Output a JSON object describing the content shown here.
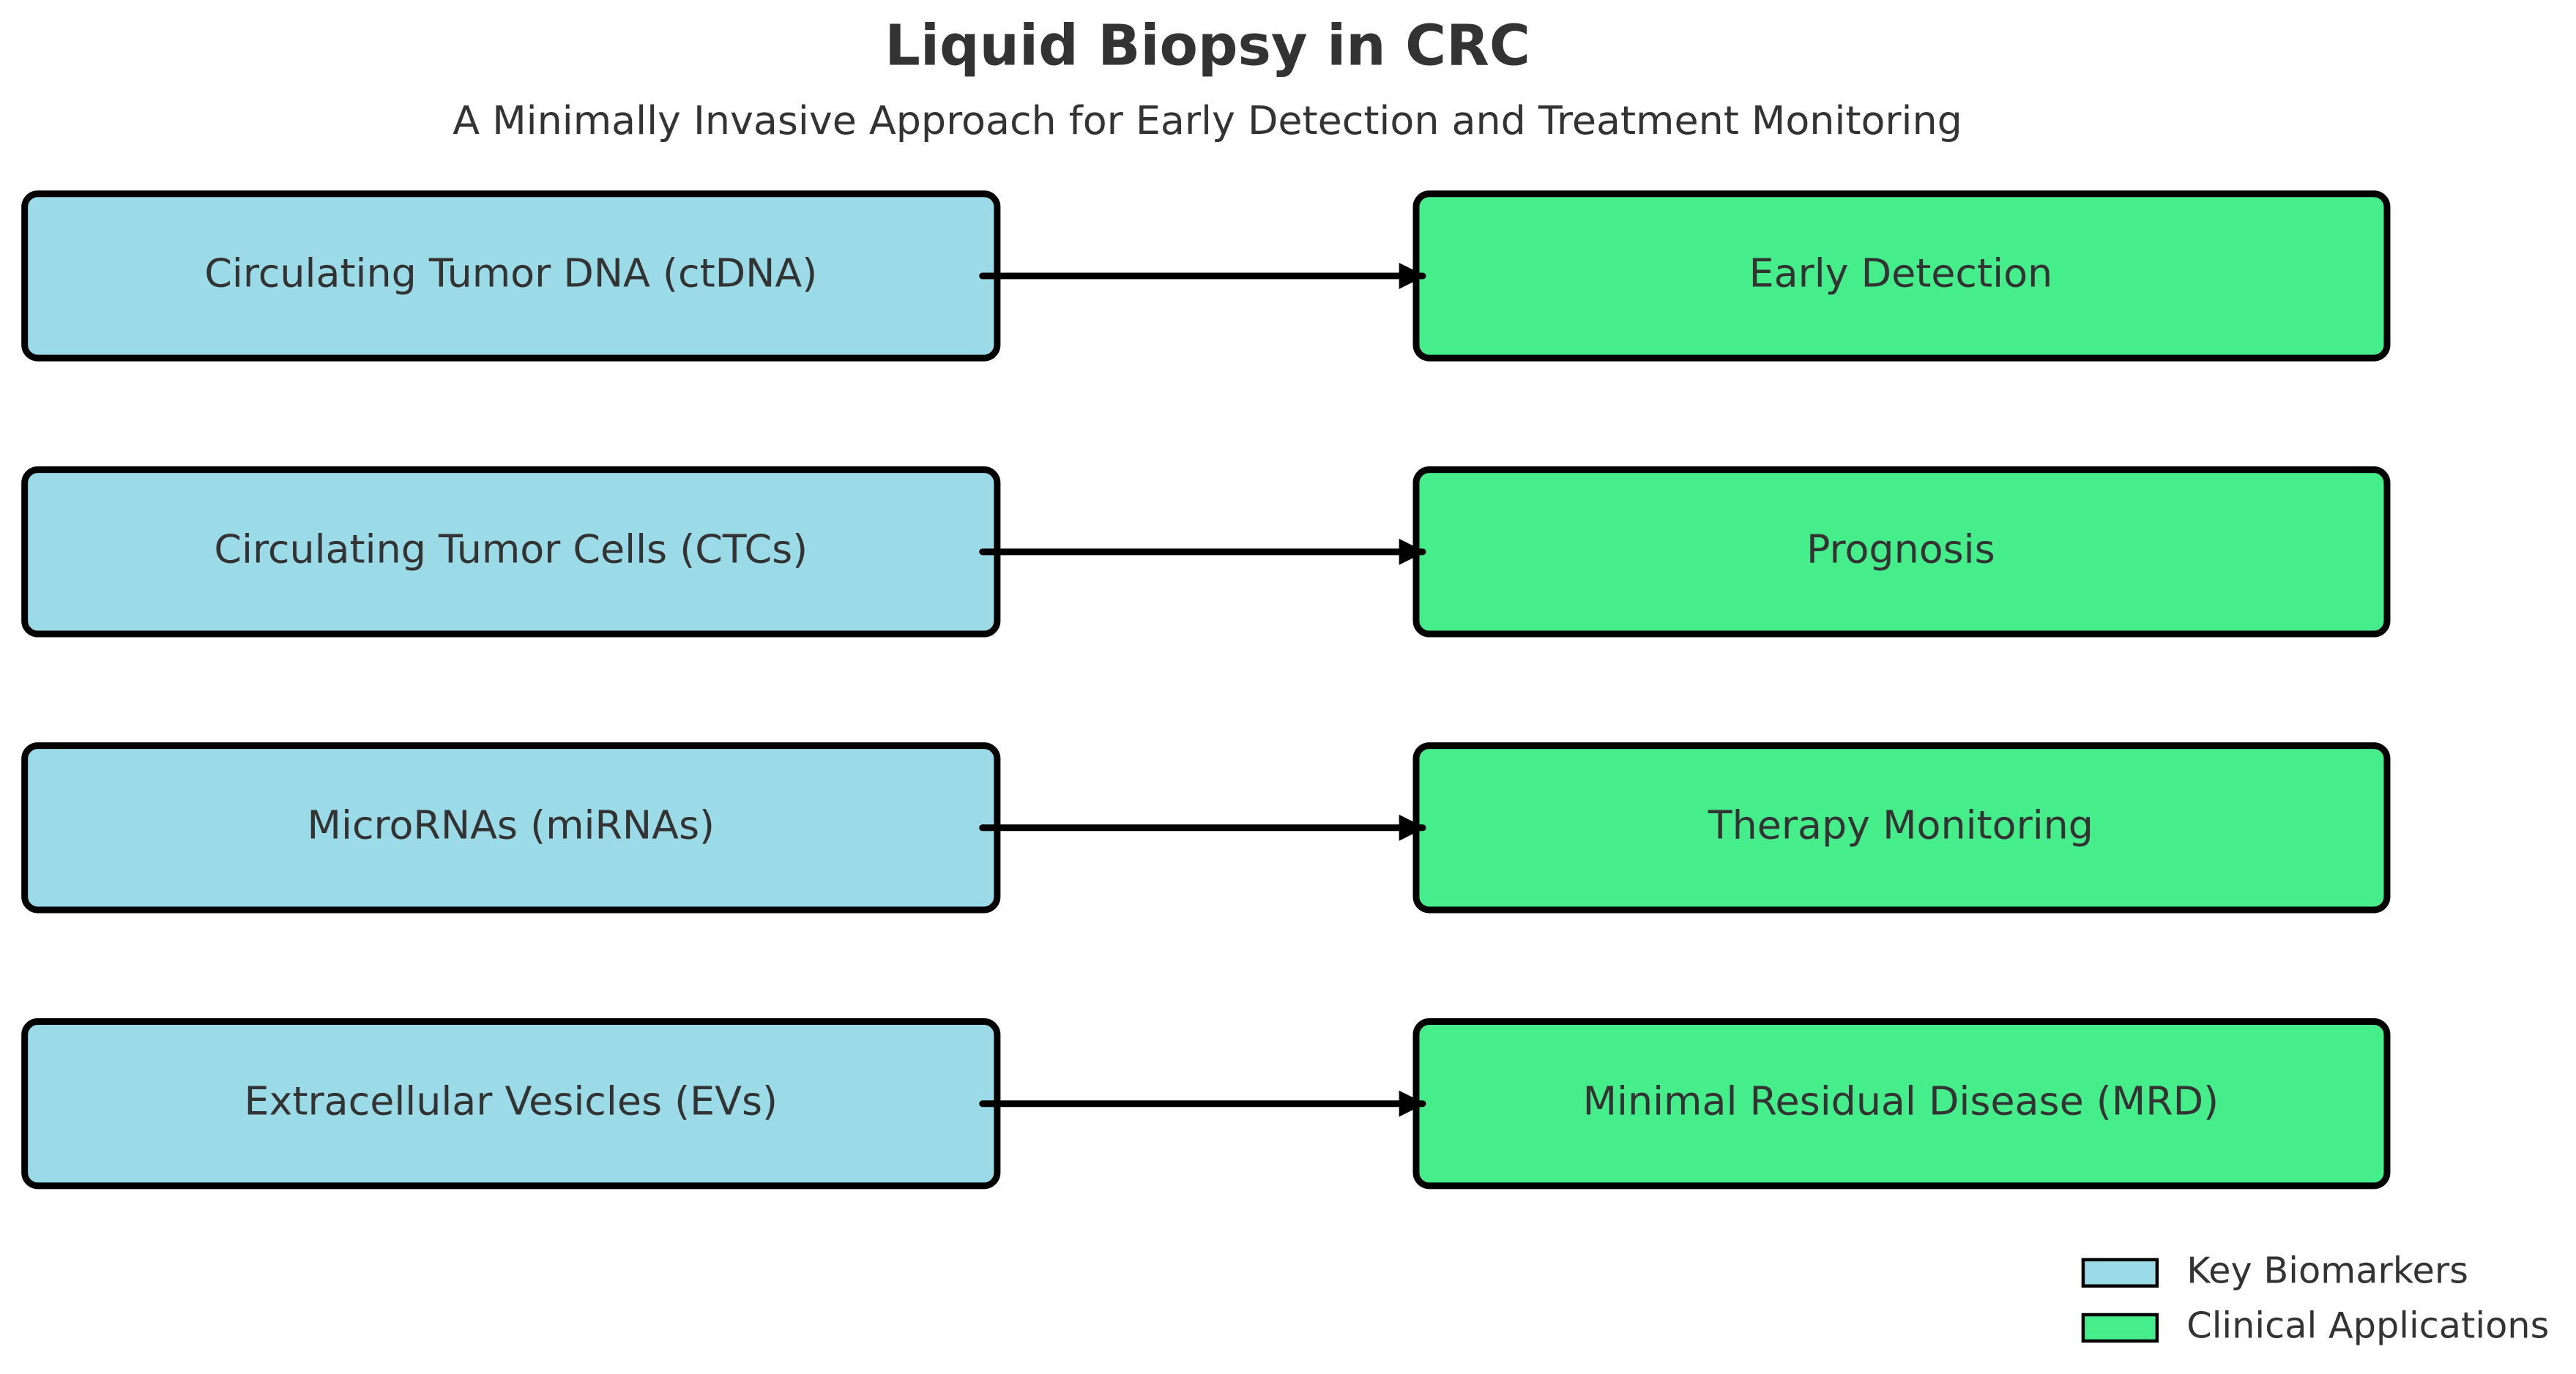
{
  "header": {
    "title": "Liquid Biopsy in CRC",
    "subtitle": "A Minimally Invasive Approach for Early Detection and Treatment Monitoring"
  },
  "rows": [
    {
      "biomarker": "Circulating Tumor DNA (ctDNA)",
      "application": "Early Detection"
    },
    {
      "biomarker": "Circulating Tumor Cells (CTCs)",
      "application": "Prognosis"
    },
    {
      "biomarker": "MicroRNAs (miRNAs)",
      "application": "Therapy Monitoring"
    },
    {
      "biomarker": "Extracellular Vesicles (EVs)",
      "application": "Minimal Residual Disease (MRD)"
    }
  ],
  "legend": [
    {
      "label": "Key Biomarkers",
      "color": "#9bdbe8"
    },
    {
      "label": "Clinical Applications",
      "color": "#45ee8a"
    }
  ]
}
